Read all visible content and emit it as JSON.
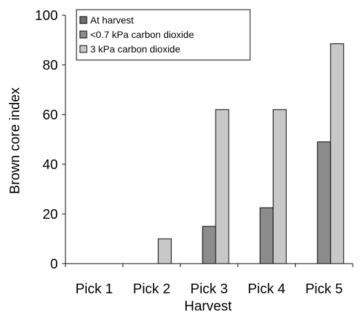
{
  "chart_data": {
    "type": "bar",
    "categories": [
      "Pick 1",
      "Pick 2",
      "Pick 3",
      "Pick 4",
      "Pick 5"
    ],
    "series": [
      {
        "name": "At harvest",
        "color": "#6e6e6e",
        "values": [
          0,
          0,
          0,
          0,
          0
        ]
      },
      {
        "name": "<0.7 kPa carbon dioxide",
        "color": "#8c8c8c",
        "values": [
          0,
          0,
          15,
          22.5,
          49
        ]
      },
      {
        "name": "3 kPa carbon dioxide",
        "color": "#c8c8c8",
        "values": [
          0,
          10,
          62,
          62,
          88.5
        ]
      }
    ],
    "xlabel": "Harvest",
    "ylabel": "Brown core index",
    "ylim": [
      0,
      100
    ],
    "yticks": [
      "0",
      "20",
      "40",
      "60",
      "80",
      "100"
    ],
    "legend_position": "top-left",
    "grid": false
  }
}
